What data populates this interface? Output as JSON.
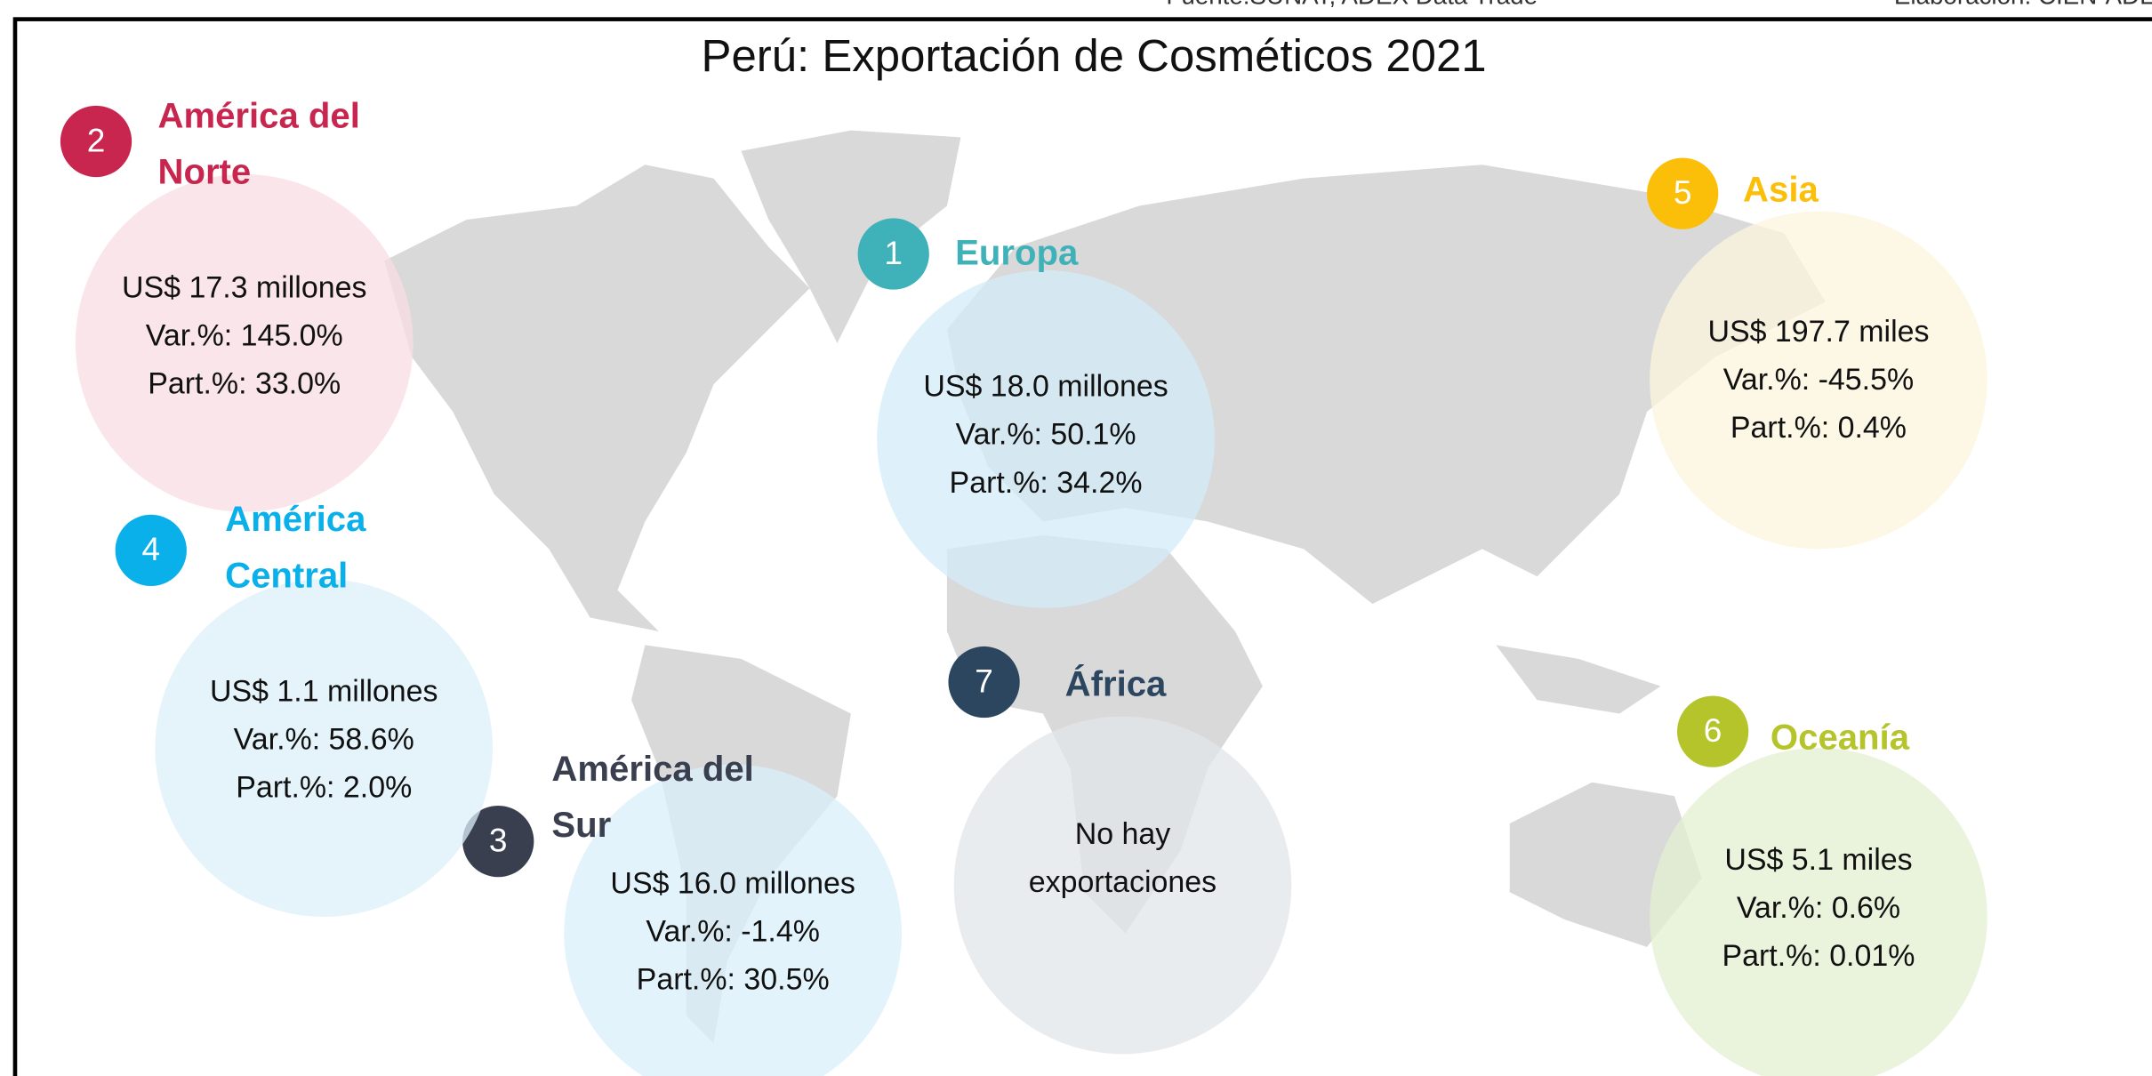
{
  "source": "Fuente:SUNAT, ADEX Data Trade",
  "credit": "Elaboración: CIEN-ADEX",
  "title": "Perú: Exportación de Cosméticos 2021",
  "regions": [
    {
      "number": "1",
      "name": [
        "Europa"
      ],
      "color": "#3fb1b8",
      "bubble": "#d3ecf8",
      "lines": [
        "US$ 18.0 millones",
        "Var.%: 50.1%",
        "Part.%: 34.2%"
      ]
    },
    {
      "number": "2",
      "name": [
        "América del",
        "Norte"
      ],
      "color": "#c8264f",
      "bubble": "#f8dde3",
      "lines": [
        "US$ 17.3 millones",
        "Var.%: 145.0%",
        "Part.%: 33.0%"
      ]
    },
    {
      "number": "3",
      "name": [
        "América del",
        "Sur"
      ],
      "color": "#3a3f4f",
      "bubble": "#d8eff9",
      "lines": [
        "US$  16.0 millones",
        "Var.%: -1.4%",
        "Part.%: 30.5%"
      ]
    },
    {
      "number": "4",
      "name": [
        "América",
        "Central"
      ],
      "color": "#0ab0ea",
      "bubble": "#dcf0fa",
      "lines": [
        "US$ 1.1 millones",
        "Var.%: 58.6%",
        "Part.%: 2.0%"
      ]
    },
    {
      "number": "5",
      "name": [
        "Asia"
      ],
      "color": "#fbbf0a",
      "bubble": "#fcf4dc",
      "lines": [
        "US$ 197.7 miles",
        "Var.%: -45.5%",
        "Part.%: 0.4%"
      ]
    },
    {
      "number": "6",
      "name": [
        "Oceanía"
      ],
      "color": "#b5c42a",
      "bubble": "#e3f0d1",
      "lines": [
        "US$  5.1 miles",
        "Var.%: 0.6%",
        "Part.%: 0.01%"
      ]
    },
    {
      "number": "7",
      "name": [
        "África"
      ],
      "color": "#2c4660",
      "bubble": "#e2e5e9",
      "lines": [
        "No hay",
        "exportaciones"
      ]
    }
  ]
}
